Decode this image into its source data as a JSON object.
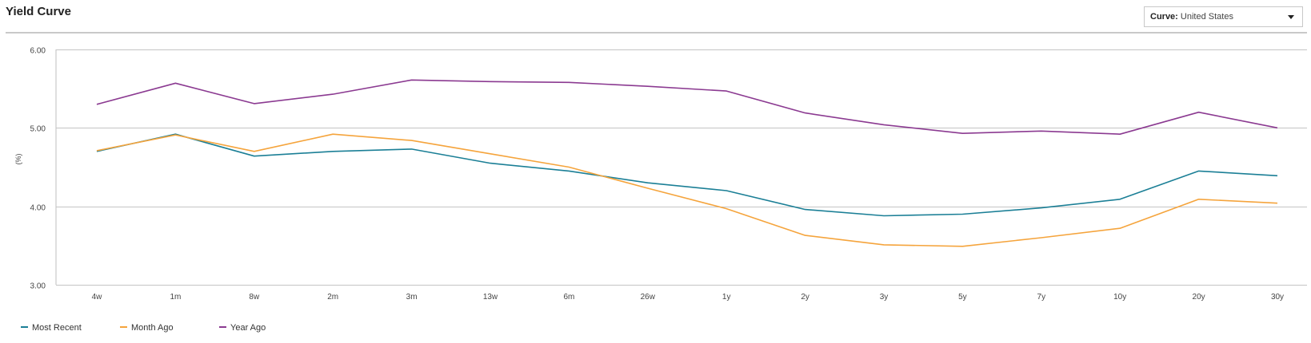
{
  "header": {
    "title": "Yield Curve",
    "select_label": "Curve:",
    "select_value": "United States"
  },
  "chart_data": {
    "type": "line",
    "ylabel": "(%)",
    "ylim": [
      3.0,
      6.0
    ],
    "yticks": [
      "3.00",
      "4.00",
      "5.00",
      "6.00"
    ],
    "categories": [
      "4w",
      "1m",
      "8w",
      "2m",
      "3m",
      "13w",
      "6m",
      "26w",
      "1y",
      "2y",
      "3y",
      "5y",
      "7y",
      "10y",
      "20y",
      "30y"
    ],
    "grid": true,
    "legend_position": "bottom-left",
    "series": [
      {
        "name": "Most Recent",
        "color": "#1b7f96",
        "values": [
          4.7,
          4.92,
          4.64,
          4.7,
          4.73,
          4.55,
          4.45,
          4.3,
          4.2,
          3.96,
          3.88,
          3.9,
          3.98,
          4.09,
          4.45,
          4.39
        ]
      },
      {
        "name": "Month Ago",
        "color": "#f5a43c",
        "values": [
          4.71,
          4.91,
          4.7,
          4.92,
          4.84,
          4.67,
          4.5,
          4.23,
          3.97,
          3.63,
          3.51,
          3.49,
          3.6,
          3.72,
          4.09,
          4.04
        ]
      },
      {
        "name": "Year Ago",
        "color": "#8b3a91",
        "values": [
          5.3,
          5.57,
          5.31,
          5.43,
          5.61,
          5.59,
          5.58,
          5.53,
          5.47,
          5.19,
          5.04,
          4.93,
          4.96,
          4.92,
          5.2,
          5.0
        ]
      }
    ]
  }
}
